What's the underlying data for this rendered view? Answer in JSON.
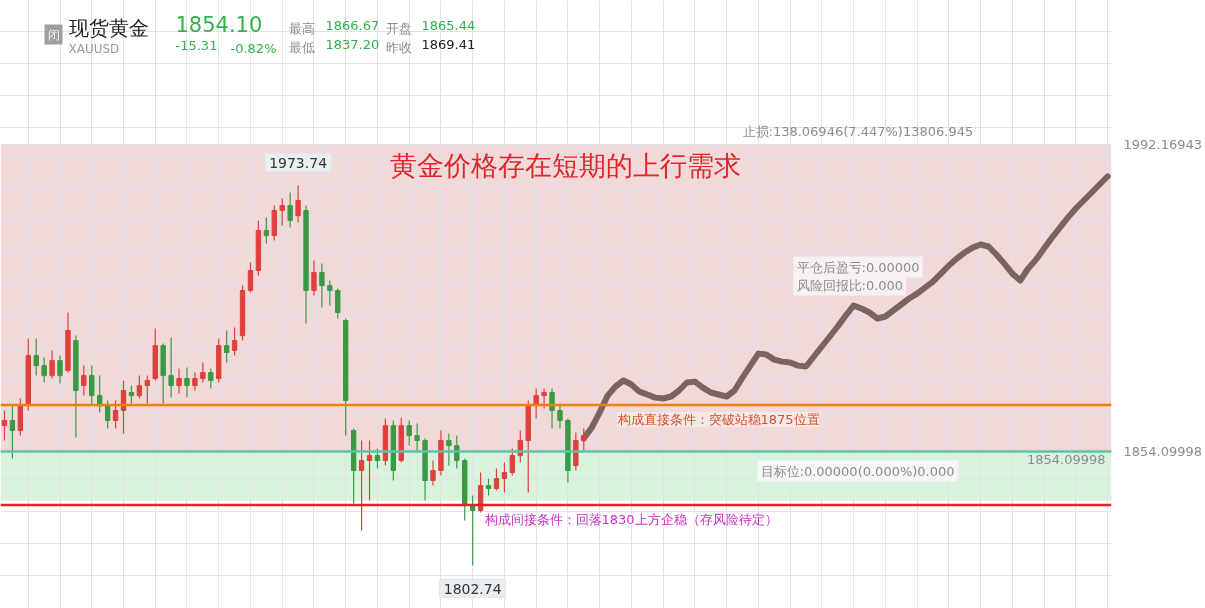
{
  "chart_data": {
    "type": "candlestick",
    "title": "黄金价格存在短期的上行需求",
    "subtitle": "现货黄金",
    "categories": [
      null,
      null,
      null,
      null,
      null,
      null,
      null,
      null,
      null,
      null,
      null,
      null,
      null,
      null,
      null,
      null,
      null,
      null,
      null,
      null,
      null,
      null,
      null,
      null,
      null,
      null,
      null,
      null,
      null,
      null,
      null,
      null,
      null,
      null,
      null,
      null,
      null,
      null,
      null,
      null,
      null,
      null,
      null,
      null,
      null,
      null,
      null,
      null,
      null,
      null,
      null,
      null,
      null,
      null,
      null,
      null,
      null,
      null,
      null,
      null,
      null,
      null,
      null,
      null,
      null,
      null,
      null,
      null,
      null,
      null,
      null,
      null,
      null,
      null,
      null,
      null,
      null,
      null,
      null,
      null,
      null,
      null,
      null,
      null,
      null,
      null,
      null,
      null,
      null,
      null,
      null,
      null,
      null,
      null,
      null,
      null,
      null,
      null,
      null,
      null,
      null,
      null,
      null,
      null,
      null,
      null,
      null,
      null,
      null,
      null,
      null,
      null,
      null,
      null,
      null,
      null,
      null,
      null,
      null,
      null,
      null,
      null,
      null,
      null,
      null,
      null,
      null,
      null,
      null,
      null,
      null,
      null,
      null,
      null,
      null,
      null,
      null,
      null,
      null,
      null
    ],
    "ohlc": [
      [
        1865.7,
        1872.5,
        1859.0,
        1868.0
      ],
      [
        1868.0,
        1874.7,
        1850.9,
        1863.5
      ],
      [
        1863.5,
        1877.9,
        1861.2,
        1874.7
      ],
      [
        1874.7,
        1904.9,
        1872.5,
        1897.2
      ],
      [
        1897.2,
        1904.9,
        1888.2,
        1892.7
      ],
      [
        1892.7,
        1896.3,
        1885.1,
        1888.2
      ],
      [
        1888.2,
        1899.5,
        1886.9,
        1895.0
      ],
      [
        1895.0,
        1897.2,
        1884.6,
        1888.2
      ],
      [
        1890.5,
        1916.6,
        1889.6,
        1908.5
      ],
      [
        1904.0,
        1906.2,
        1860.3,
        1881.5
      ],
      [
        1883.7,
        1892.7,
        1879.2,
        1888.2
      ],
      [
        1888.2,
        1892.7,
        1874.7,
        1879.2
      ],
      [
        1879.2,
        1888.2,
        1871.6,
        1874.7
      ],
      [
        1874.7,
        1877.0,
        1864.4,
        1868.0
      ],
      [
        1868.0,
        1877.0,
        1864.4,
        1872.5
      ],
      [
        1872.5,
        1886.0,
        1862.1,
        1881.5
      ],
      [
        1880.6,
        1883.7,
        1875.6,
        1879.2
      ],
      [
        1879.2,
        1888.2,
        1877.9,
        1883.7
      ],
      [
        1883.7,
        1888.2,
        1875.6,
        1886.0
      ],
      [
        1886.9,
        1909.4,
        1886.0,
        1901.7
      ],
      [
        1901.7,
        1902.6,
        1875.6,
        1888.2
      ],
      [
        1888.2,
        1905.3,
        1878.3,
        1883.7
      ],
      [
        1883.7,
        1891.4,
        1880.1,
        1886.9
      ],
      [
        1886.9,
        1891.8,
        1878.3,
        1883.7
      ],
      [
        1883.7,
        1889.6,
        1881.5,
        1886.9
      ],
      [
        1886.9,
        1894.1,
        1885.1,
        1889.6
      ],
      [
        1889.6,
        1891.4,
        1882.4,
        1886.0
      ],
      [
        1886.9,
        1904.9,
        1885.1,
        1901.7
      ],
      [
        1901.7,
        1908.5,
        1894.1,
        1898.6
      ],
      [
        1899.5,
        1909.8,
        1897.2,
        1904.0
      ],
      [
        1906.2,
        1928.7,
        1904.0,
        1926.5
      ],
      [
        1926.5,
        1939.1,
        1925.6,
        1935.5
      ],
      [
        1935.5,
        1958.0,
        1933.2,
        1953.5
      ],
      [
        1953.5,
        1959.3,
        1947.6,
        1951.2
      ],
      [
        1951.2,
        1964.7,
        1949.0,
        1962.5
      ],
      [
        1962.5,
        1967.9,
        1955.7,
        1964.7
      ],
      [
        1964.7,
        1970.6,
        1954.8,
        1958.0
      ],
      [
        1960.2,
        1973.74,
        1957.1,
        1967.0
      ],
      [
        1962.5,
        1964.7,
        1911.6,
        1926.5
      ],
      [
        1926.5,
        1940.0,
        1924.2,
        1934.6
      ],
      [
        1934.6,
        1938.6,
        1918.8,
        1928.7
      ],
      [
        1928.7,
        1931.0,
        1919.7,
        1926.5
      ],
      [
        1926.5,
        1927.4,
        1913.9,
        1916.6
      ],
      [
        1913.0,
        1913.9,
        1861.2,
        1877.0
      ],
      [
        1863.5,
        1864.4,
        1830.6,
        1845.5
      ],
      [
        1845.5,
        1859.0,
        1818.5,
        1850.0
      ],
      [
        1850.0,
        1859.0,
        1832.0,
        1852.2
      ],
      [
        1852.2,
        1855.4,
        1846.4,
        1850.0
      ],
      [
        1850.0,
        1868.9,
        1847.7,
        1865.7
      ],
      [
        1865.7,
        1868.0,
        1841.0,
        1845.5
      ],
      [
        1850.0,
        1869.3,
        1849.1,
        1865.7
      ],
      [
        1865.7,
        1868.0,
        1856.7,
        1861.2
      ],
      [
        1861.2,
        1866.6,
        1853.6,
        1859.0
      ],
      [
        1859.0,
        1859.9,
        1832.0,
        1841.0
      ],
      [
        1841.0,
        1850.0,
        1838.7,
        1845.5
      ],
      [
        1845.5,
        1863.5,
        1843.2,
        1859.0
      ],
      [
        1859.0,
        1862.1,
        1847.7,
        1856.7
      ],
      [
        1856.7,
        1861.2,
        1846.4,
        1850.0
      ],
      [
        1850.0,
        1850.9,
        1823.0,
        1829.7
      ],
      [
        1829.7,
        1834.2,
        1802.74,
        1827.5
      ],
      [
        1827.5,
        1844.6,
        1826.6,
        1838.7
      ],
      [
        1838.7,
        1841.9,
        1834.2,
        1837.4
      ],
      [
        1837.4,
        1846.4,
        1836.5,
        1841.9
      ],
      [
        1841.9,
        1849.1,
        1835.6,
        1844.6
      ],
      [
        1844.6,
        1855.4,
        1843.2,
        1852.2
      ],
      [
        1852.2,
        1863.5,
        1849.1,
        1859.0
      ],
      [
        1859.0,
        1877.0,
        1835.6,
        1874.7
      ],
      [
        1874.7,
        1882.4,
        1868.9,
        1879.2
      ],
      [
        1879.2,
        1882.4,
        1873.4,
        1880.6
      ],
      [
        1880.6,
        1882.4,
        1864.4,
        1872.5
      ],
      [
        1872.5,
        1875.6,
        1864.4,
        1868.0
      ],
      [
        1868.0,
        1868.9,
        1840.1,
        1845.5
      ],
      [
        1847.7,
        1862.6,
        1845.5,
        1859.0
      ],
      [
        1859.0,
        1864.4,
        1854.5,
        1861.2
      ],
      null,
      null,
      null,
      null,
      null,
      null,
      null,
      null,
      null,
      null,
      null,
      null,
      null,
      null,
      null,
      null,
      null,
      null,
      null,
      null,
      null,
      null,
      null,
      null,
      null,
      null,
      null,
      null,
      null,
      null,
      null,
      null,
      null,
      null,
      null,
      null,
      null,
      null,
      null,
      null,
      null,
      null,
      null,
      null,
      null,
      null,
      null,
      null,
      null,
      null,
      null,
      null,
      null,
      null,
      null,
      null,
      null,
      null,
      null,
      null,
      null,
      null,
      null,
      null,
      null,
      null
    ],
    "colors": [
      "#e0403c",
      "#3a9a44",
      "#e0403c",
      "#e0403c",
      "#3a9a44",
      "#3a9a44",
      "#e0403c",
      "#3a9a44",
      "#e0403c",
      "#3a9a44",
      "#e0403c",
      "#3a9a44",
      "#3a9a44",
      "#3a9a44",
      "#e0403c",
      "#e0403c",
      "#3a9a44",
      "#e0403c",
      "#e0403c",
      "#e0403c",
      "#3a9a44",
      "#3a9a44",
      "#e0403c",
      "#3a9a44",
      "#e0403c",
      "#e0403c",
      "#3a9a44",
      "#e0403c",
      "#3a9a44",
      "#e0403c",
      "#e0403c",
      "#e0403c",
      "#e0403c",
      "#3a9a44",
      "#e0403c",
      "#e0403c",
      "#3a9a44",
      "#e0403c",
      "#3a9a44",
      "#e0403c",
      "#3a9a44",
      "#3a9a44",
      "#3a9a44",
      "#3a9a44",
      "#3a9a44",
      "#e0403c",
      "#e0403c",
      "#3a9a44",
      "#e0403c",
      "#3a9a44",
      "#e0403c",
      "#3a9a44",
      "#3a9a44",
      "#3a9a44",
      "#e0403c",
      "#e0403c",
      "#3a9a44",
      "#3a9a44",
      "#3a9a44",
      "#3a9a44",
      "#e0403c",
      "#3a9a44",
      "#e0403c",
      "#e0403c",
      "#e0403c",
      "#e0403c",
      "#e0403c",
      "#e0403c",
      "#e0403c",
      "#3a9a44",
      "#3a9a44",
      "#3a9a44",
      "#e0403c",
      "#e0403c",
      null,
      null,
      null,
      null,
      null,
      null,
      null,
      null,
      null,
      null,
      null,
      null,
      null,
      null,
      null,
      null,
      null,
      null,
      null,
      null,
      null,
      null,
      null,
      null,
      null,
      null,
      null,
      null,
      null,
      null,
      null,
      null,
      null,
      null,
      null,
      null,
      null,
      null,
      null,
      null,
      null,
      null,
      null,
      null,
      null,
      null,
      null,
      null,
      null,
      null,
      null,
      null,
      null,
      null,
      null,
      null,
      null,
      null,
      null,
      null,
      null,
      null,
      null,
      null,
      null,
      null
    ],
    "series": [
      {
        "type": "line",
        "color": "#7b6361",
        "values": [
          null,
          null,
          null,
          null,
          null,
          null,
          null,
          null,
          null,
          null,
          null,
          null,
          null,
          null,
          null,
          null,
          null,
          null,
          null,
          null,
          null,
          null,
          null,
          null,
          null,
          null,
          null,
          null,
          null,
          null,
          null,
          null,
          null,
          null,
          null,
          null,
          null,
          null,
          null,
          null,
          null,
          null,
          null,
          null,
          null,
          null,
          null,
          null,
          null,
          null,
          null,
          null,
          null,
          null,
          null,
          null,
          null,
          null,
          null,
          null,
          null,
          null,
          null,
          null,
          null,
          null,
          null,
          null,
          null,
          null,
          null,
          null,
          null,
          1859.9,
          1864.8,
          1871.6,
          1879.2,
          1883.3,
          1886.0,
          1884.2,
          1881.0,
          1879.7,
          1878.3,
          1877.9,
          1878.8,
          1881.5,
          1885.1,
          1885.5,
          1882.8,
          1880.6,
          1879.7,
          1878.8,
          1881.5,
          1887.3,
          1892.7,
          1898.1,
          1897.7,
          1895.4,
          1894.5,
          1894.1,
          1892.7,
          1892.3,
          1896.8,
          1901.3,
          1905.8,
          1910.3,
          1915.2,
          1919.7,
          1918.4,
          1916.6,
          1913.9,
          1914.8,
          1917.5,
          1920.2,
          1922.9,
          1925.1,
          1927.8,
          1930.5,
          1934.1,
          1937.7,
          1940.9,
          1943.6,
          1945.8,
          1947.2,
          1946.3,
          1942.7,
          1938.6,
          1934.1,
          1931.0,
          1936.4,
          1940.4,
          1945.4,
          1950.3,
          1954.8,
          1959.3,
          1963.4,
          1967.0,
          1970.6,
          1974.2,
          1977.8
        ]
      }
    ],
    "ylim": [
      1783.4,
      2057.0
    ],
    "yticks": [
      {
        "value": 1798.2,
        "label": null
      },
      {
        "value": 1812.6,
        "label": null
      },
      {
        "value": 1827.0,
        "label": null
      },
      {
        "value": 1841.4,
        "label": null
      },
      1854.09998,
      {
        "value": 1870.2,
        "label": null
      },
      {
        "value": 1884.6,
        "label": null
      },
      {
        "value": 1899.0,
        "label": null
      },
      {
        "value": 1913.4,
        "label": null
      },
      {
        "value": 1927.8,
        "label": null
      },
      {
        "value": 1942.2,
        "label": null
      },
      {
        "value": 1956.6,
        "label": null
      },
      {
        "value": 1971.0,
        "label": null
      },
      {
        "value": 1985.4,
        "label": null
      },
      1992.16943,
      {
        "value": 1999.8,
        "label": null
      },
      {
        "value": 2014.2,
        "label": null
      },
      {
        "value": 2028.6,
        "label": null
      },
      {
        "value": 2043.0,
        "label": null
      }
    ],
    "tick_labels": "y",
    "grid": true,
    "ref_lines": [
      {
        "axis": "y",
        "value": 1875,
        "label": "构成直接条件：突破站稳1875位置",
        "color": "#f07f12"
      },
      {
        "axis": "y",
        "value": 1830,
        "label": "构成间接条件：回落1830上方企稳（存风险待定）",
        "color": "#d8262b"
      },
      {
        "axis": "y",
        "value": 1854.09998,
        "label": "1854.09998",
        "color": "#5bc4a8"
      }
    ],
    "bands": [
      {
        "axis": "y",
        "from": 1854.09998,
        "to": 1992.16943,
        "label": "止损:138.06946(7.447%)13806.945",
        "color": "#f2d9d9"
      },
      {
        "axis": "y",
        "from": 1832,
        "to": 1854.09998,
        "color": "#d9f2de"
      }
    ],
    "annotations": [
      "XAUUSD",
      "1854.10",
      "-15.31",
      "-0.82%",
      "最高",
      "1866.67",
      "开盘",
      "1865.44",
      "最低",
      "1837.20",
      "昨收",
      "1869.41",
      "闭",
      "平仓后盈亏:0.00000",
      "风险回报比:0.000",
      "目标位:0.00000(0.000%)0.000",
      {
        "text": "1973.74",
        "y": 1973.74
      },
      {
        "text": "1802.74",
        "y": 1802.74
      }
    ]
  }
}
